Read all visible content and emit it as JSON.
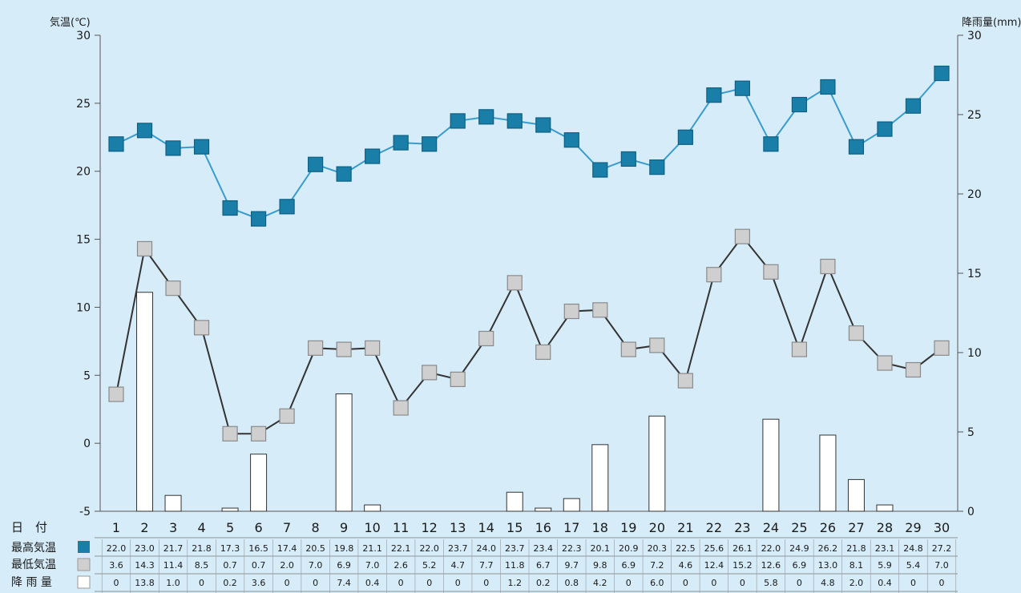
{
  "chart_data": {
    "type": "line",
    "y_left_label": "気温(℃)",
    "y_right_label": "降雨量(mm)",
    "y_left_ticks": [
      30,
      25,
      20,
      15,
      10,
      5,
      0,
      -5
    ],
    "y_right_ticks": [
      30,
      25,
      20,
      15,
      10,
      5,
      0
    ],
    "y_left_range": [
      -5,
      30
    ],
    "y_right_range": [
      0,
      30
    ],
    "row_labels": {
      "day": "日　付",
      "max": "最高気温",
      "min": "最低気温",
      "rain": "降 雨 量"
    },
    "days": [
      "1",
      "2",
      "3",
      "4",
      "5",
      "6",
      "7",
      "8",
      "9",
      "10",
      "11",
      "12",
      "13",
      "14",
      "15",
      "16",
      "17",
      "18",
      "19",
      "20",
      "21",
      "22",
      "23",
      "24",
      "25",
      "26",
      "27",
      "28",
      "29",
      "30"
    ],
    "series": [
      {
        "name": "最高気温",
        "kind": "line",
        "axis": "left",
        "color": "#1a7fa8",
        "values": [
          22.0,
          23.0,
          21.7,
          21.8,
          17.3,
          16.5,
          17.4,
          20.5,
          19.8,
          21.1,
          22.1,
          22.0,
          23.7,
          24.0,
          23.7,
          23.4,
          22.3,
          20.1,
          20.9,
          20.3,
          22.5,
          25.6,
          26.1,
          22.0,
          24.9,
          26.2,
          21.8,
          23.1,
          24.8,
          27.2
        ],
        "labels": [
          "22.0",
          "23.0",
          "21.7",
          "21.8",
          "17.3",
          "16.5",
          "17.4",
          "20.5",
          "19.8",
          "21.1",
          "22.1",
          "22.0",
          "23.7",
          "24.0",
          "23.7",
          "23.4",
          "22.3",
          "20.1",
          "20.9",
          "20.3",
          "22.5",
          "25.6",
          "26.1",
          "22.0",
          "24.9",
          "26.2",
          "21.8",
          "23.1",
          "24.8",
          "27.2"
        ]
      },
      {
        "name": "最低気温",
        "kind": "line",
        "axis": "left",
        "color": "#cfcfcf",
        "values": [
          3.6,
          14.3,
          11.4,
          8.5,
          0.7,
          0.7,
          2.0,
          7.0,
          6.9,
          7.0,
          2.6,
          5.2,
          4.7,
          7.7,
          11.8,
          6.7,
          9.7,
          9.8,
          6.9,
          7.2,
          4.6,
          12.4,
          15.2,
          12.6,
          6.9,
          13.0,
          8.1,
          5.9,
          5.4,
          7.0
        ],
        "labels": [
          "3.6",
          "14.3",
          "11.4",
          "8.5",
          "0.7",
          "0.7",
          "2.0",
          "7.0",
          "6.9",
          "7.0",
          "2.6",
          "5.2",
          "4.7",
          "7.7",
          "11.8",
          "6.7",
          "9.7",
          "9.8",
          "6.9",
          "7.2",
          "4.6",
          "12.4",
          "15.2",
          "12.6",
          "6.9",
          "13.0",
          "8.1",
          "5.9",
          "5.4",
          "7.0"
        ]
      },
      {
        "name": "降雨量",
        "kind": "bar",
        "axis": "right",
        "color": "#ffffff",
        "values": [
          0,
          13.8,
          1.0,
          0,
          0.2,
          3.6,
          0,
          0,
          7.4,
          0.4,
          0,
          0,
          0,
          0,
          1.2,
          0.2,
          0.8,
          4.2,
          0,
          6.0,
          0,
          0,
          0,
          5.8,
          0,
          4.8,
          2.0,
          0.4,
          0,
          0
        ],
        "labels": [
          "0",
          "13.8",
          "1.0",
          "0",
          "0.2",
          "3.6",
          "0",
          "0",
          "7.4",
          "0.4",
          "0",
          "0",
          "0",
          "0",
          "1.2",
          "0.2",
          "0.8",
          "4.2",
          "0",
          "6.0",
          "0",
          "0",
          "0",
          "5.8",
          "0",
          "4.8",
          "2.0",
          "0.4",
          "0",
          "0"
        ]
      }
    ]
  }
}
